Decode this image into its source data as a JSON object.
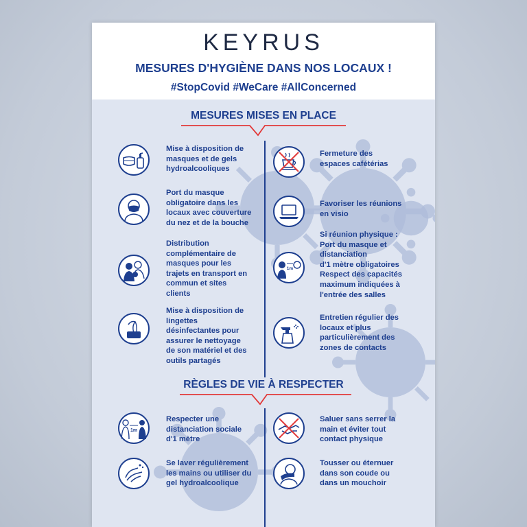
{
  "header": {
    "logo": "KEYRUS",
    "title": "MESURES D'HYGIÈNE DANS NOS LOCAUX !",
    "hashtags": "#StopCovid #WeCare #AllConcerned"
  },
  "sections": {
    "measures_title": "MESURES MISES EN PLACE",
    "rules_title": "RÈGLES DE VIE À RESPECTER"
  },
  "measures": [
    {
      "icon": "mask-gel-icon",
      "text": "Mise à disposition de\nmasques et de gels\nhydroalcooliques"
    },
    {
      "icon": "no-coffee-icon",
      "text": "Fermeture des\nespaces  cafétérias"
    },
    {
      "icon": "masked-face-icon",
      "text": "Port du masque\nobligatoire   dans   les\nlocaux avec couverture\ndu nez et de la bouche"
    },
    {
      "icon": "laptop-icon",
      "text": "Favoriser  les  réunions\nen visio"
    },
    {
      "icon": "commute-people-icon",
      "text": "Distribution\ncomplémentaire de\nmasques pour les\ntrajets en transport en\ncommun et sites\nclients"
    },
    {
      "icon": "distance-1m-icon",
      "text": "Si réunion physique :\nPort du masque et\ndistanciation\nd'1 mètre obligatoires\nRespect  des  capacités\nmaximum indiquées à\nl'entrée des salles"
    },
    {
      "icon": "wipes-icon",
      "text": "Mise à disposition de\nlingettes\ndésinfectantes pour\nassurer le nettoyage\nde son matériel et des\noutils partagés"
    },
    {
      "icon": "spray-bottle-icon",
      "text": "Entretien régulier des\nlocaux et plus\nparticulièrement des\nzones de contacts"
    }
  ],
  "rules": [
    {
      "icon": "social-distance-icon",
      "text": "Respecter une\ndistanciation sociale\nd'1 mètre"
    },
    {
      "icon": "no-handshake-icon",
      "text": "Saluer  sans  serrer  la\nmain   et   éviter   tout\ncontact physique"
    },
    {
      "icon": "hand-washing-icon",
      "text": "Se laver régulièrement\nles mains ou utiliser du\ngel hydroalcoolique"
    },
    {
      "icon": "sneeze-elbow-icon",
      "text": "Tousser  ou  éternuer\ndans  son  coude  ou\ndans un mouchoir"
    }
  ],
  "icon_labels": {
    "one_meter": "1m"
  },
  "colors": {
    "navy": "#1e3f8f",
    "red_accent": "#e23a3a",
    "poster_bg": "#dfe5f1",
    "virus": "#aebcda"
  }
}
